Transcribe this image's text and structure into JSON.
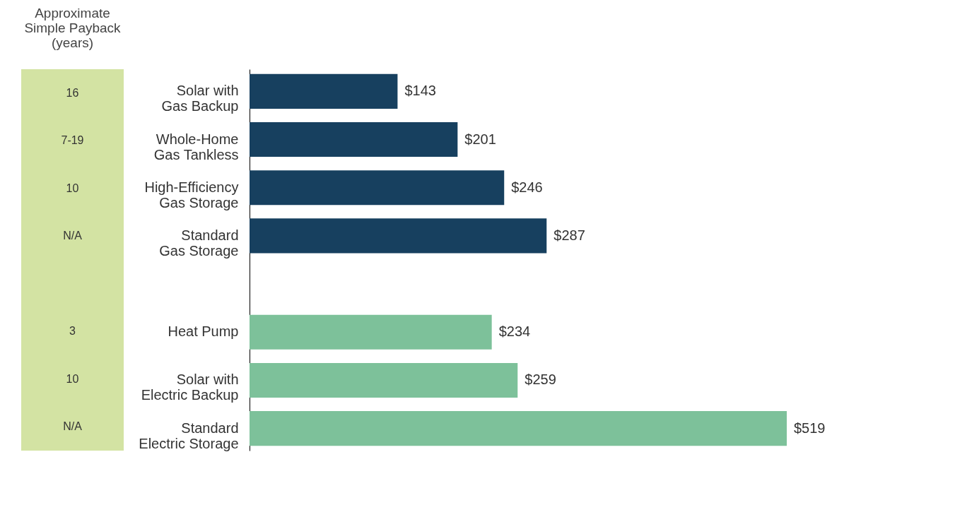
{
  "chart_data": [
    {
      "type": "other",
      "title": "Approximate Simple Payback (years)",
      "annotations": [
        "16",
        "7-19",
        "10",
        "N/A",
        "3",
        "10",
        "N/A"
      ]
    },
    {
      "type": "bar",
      "orientation": "horizontal",
      "data_labels": false,
      "categories": [
        "Solar with Gas Backup",
        "Whole-Home Gas Tankless",
        "High-Efficiency Gas Storage",
        "Standard Gas Storage",
        null,
        "Heat Pump",
        "Solar with Electric Backup",
        "Standard Electric Storage"
      ],
      "values": [
        143,
        201,
        246,
        287,
        null,
        234,
        259,
        519
      ],
      "value_labels": [
        "$143",
        "$201",
        "$246",
        "$287",
        null,
        "$234",
        "$259",
        "$519"
      ],
      "colors": [
        "#17405f",
        "#17405f",
        "#17405f",
        "#17405f",
        null,
        "#7dc19a",
        "#7dc19a",
        "#7dc19a"
      ]
    }
  ]
}
